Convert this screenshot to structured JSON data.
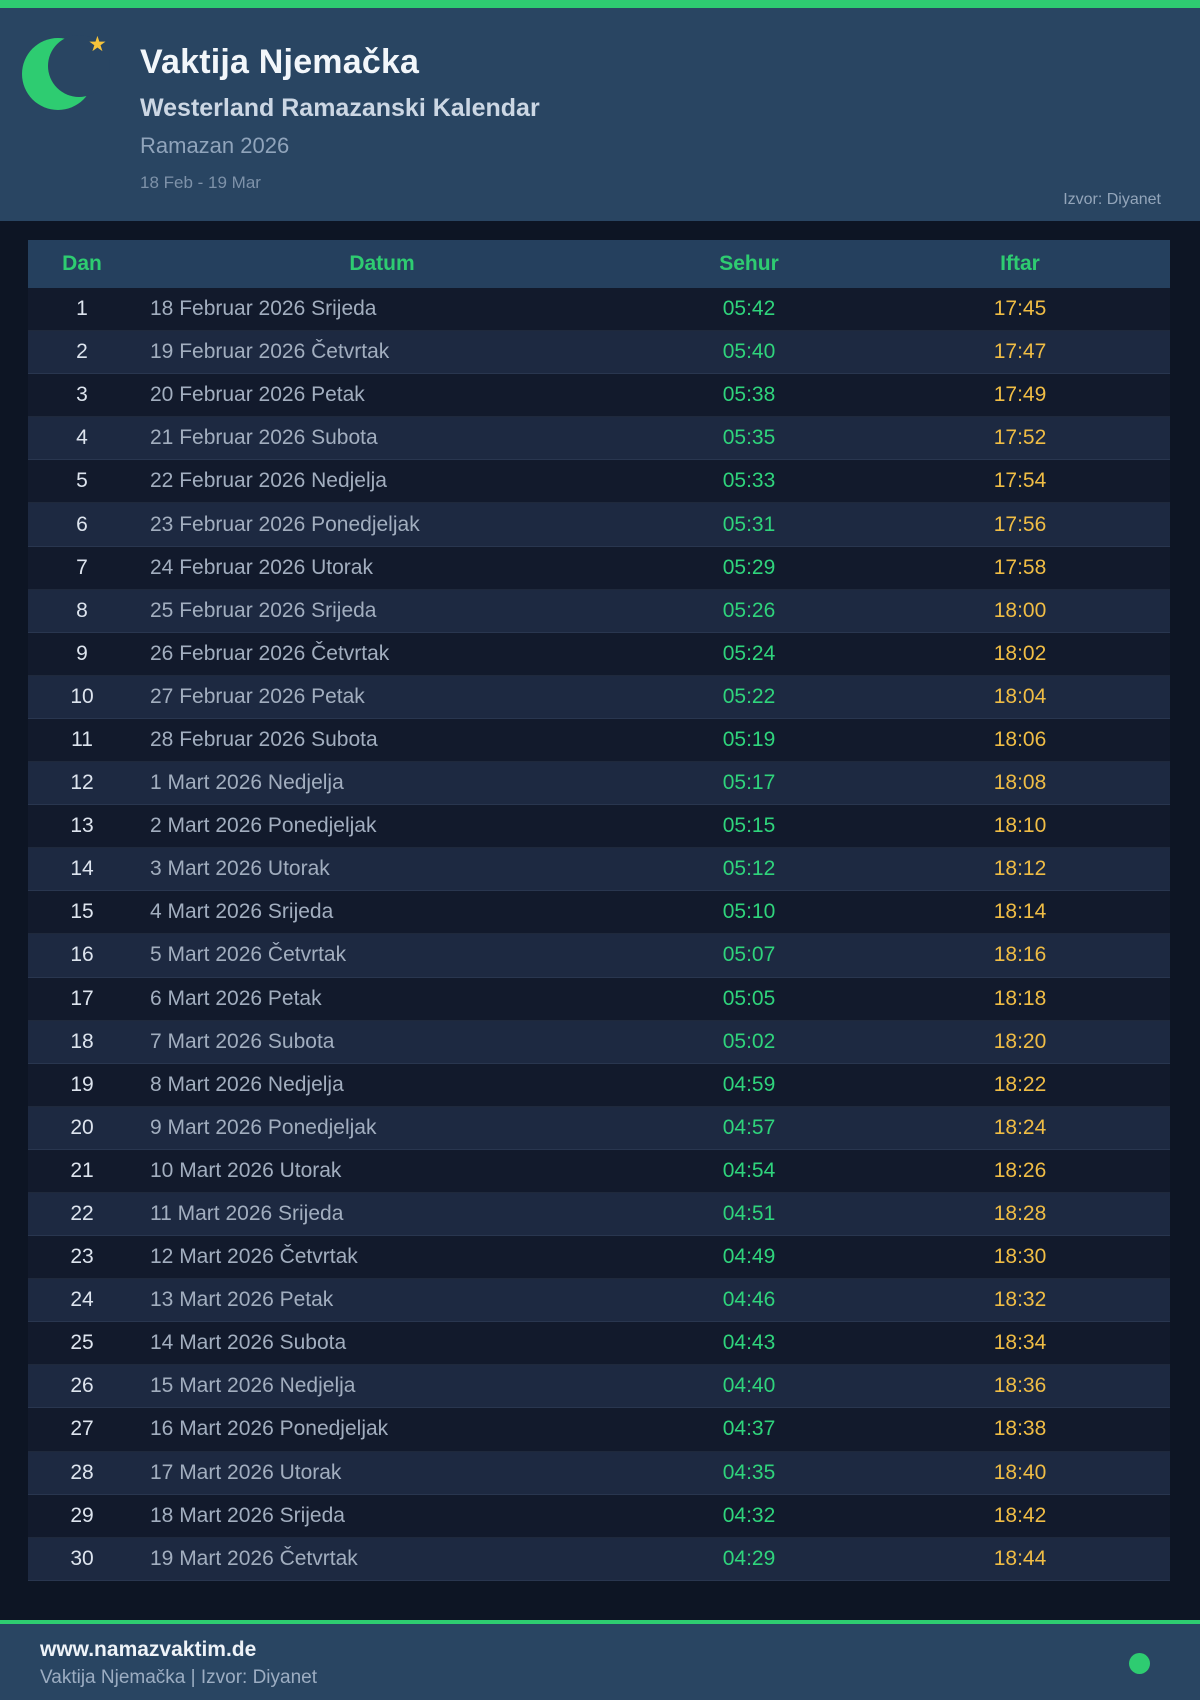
{
  "header": {
    "title": "Vaktija Njemačka",
    "subtitle": "Westerland Ramazanski Kalendar",
    "season": "Ramazan 2026",
    "date_range": "18 Feb - 19 Mar",
    "source": "Izvor: Diyanet",
    "icons": {
      "moon": "crescent-moon",
      "star": "star",
      "star_glyph": "★"
    }
  },
  "table": {
    "columns": [
      "Dan",
      "Datum",
      "Sehur",
      "Iftar"
    ],
    "rows": [
      [
        "1",
        "18 Februar 2026 Srijeda",
        "05:42",
        "17:45"
      ],
      [
        "2",
        "19 Februar 2026 Četvrtak",
        "05:40",
        "17:47"
      ],
      [
        "3",
        "20 Februar 2026 Petak",
        "05:38",
        "17:49"
      ],
      [
        "4",
        "21 Februar 2026 Subota",
        "05:35",
        "17:52"
      ],
      [
        "5",
        "22 Februar 2026 Nedjelja",
        "05:33",
        "17:54"
      ],
      [
        "6",
        "23 Februar 2026 Ponedjeljak",
        "05:31",
        "17:56"
      ],
      [
        "7",
        "24 Februar 2026 Utorak",
        "05:29",
        "17:58"
      ],
      [
        "8",
        "25 Februar 2026 Srijeda",
        "05:26",
        "18:00"
      ],
      [
        "9",
        "26 Februar 2026 Četvrtak",
        "05:24",
        "18:02"
      ],
      [
        "10",
        "27 Februar 2026 Petak",
        "05:22",
        "18:04"
      ],
      [
        "11",
        "28 Februar 2026 Subota",
        "05:19",
        "18:06"
      ],
      [
        "12",
        "1 Mart 2026 Nedjelja",
        "05:17",
        "18:08"
      ],
      [
        "13",
        "2 Mart 2026 Ponedjeljak",
        "05:15",
        "18:10"
      ],
      [
        "14",
        "3 Mart 2026 Utorak",
        "05:12",
        "18:12"
      ],
      [
        "15",
        "4 Mart 2026 Srijeda",
        "05:10",
        "18:14"
      ],
      [
        "16",
        "5 Mart 2026 Četvrtak",
        "05:07",
        "18:16"
      ],
      [
        "17",
        "6 Mart 2026 Petak",
        "05:05",
        "18:18"
      ],
      [
        "18",
        "7 Mart 2026 Subota",
        "05:02",
        "18:20"
      ],
      [
        "19",
        "8 Mart 2026 Nedjelja",
        "04:59",
        "18:22"
      ],
      [
        "20",
        "9 Mart 2026 Ponedjeljak",
        "04:57",
        "18:24"
      ],
      [
        "21",
        "10 Mart 2026 Utorak",
        "04:54",
        "18:26"
      ],
      [
        "22",
        "11 Mart 2026 Srijeda",
        "04:51",
        "18:28"
      ],
      [
        "23",
        "12 Mart 2026 Četvrtak",
        "04:49",
        "18:30"
      ],
      [
        "24",
        "13 Mart 2026 Petak",
        "04:46",
        "18:32"
      ],
      [
        "25",
        "14 Mart 2026 Subota",
        "04:43",
        "18:34"
      ],
      [
        "26",
        "15 Mart 2026 Nedjelja",
        "04:40",
        "18:36"
      ],
      [
        "27",
        "16 Mart 2026 Ponedjeljak",
        "04:37",
        "18:38"
      ],
      [
        "28",
        "17 Mart 2026 Utorak",
        "04:35",
        "18:40"
      ],
      [
        "29",
        "18 Mart 2026 Srijeda",
        "04:32",
        "18:42"
      ],
      [
        "30",
        "19 Mart 2026 Četvrtak",
        "04:29",
        "18:44"
      ]
    ]
  },
  "footer": {
    "website": "www.namazvaktim.de",
    "tagline": "Vaktija Njemačka | Izvor: Diyanet"
  },
  "colors": {
    "accent_green": "#2ecc71",
    "sehur_green": "#2fd47c",
    "iftar_amber": "#f0bd45",
    "panel_navy": "#294562",
    "table_header_navy": "#25405e",
    "row_dark": "#121a2c",
    "row_light": "#1d2941",
    "page_bg": "#0d1524",
    "star_gold": "#f5c33b"
  }
}
